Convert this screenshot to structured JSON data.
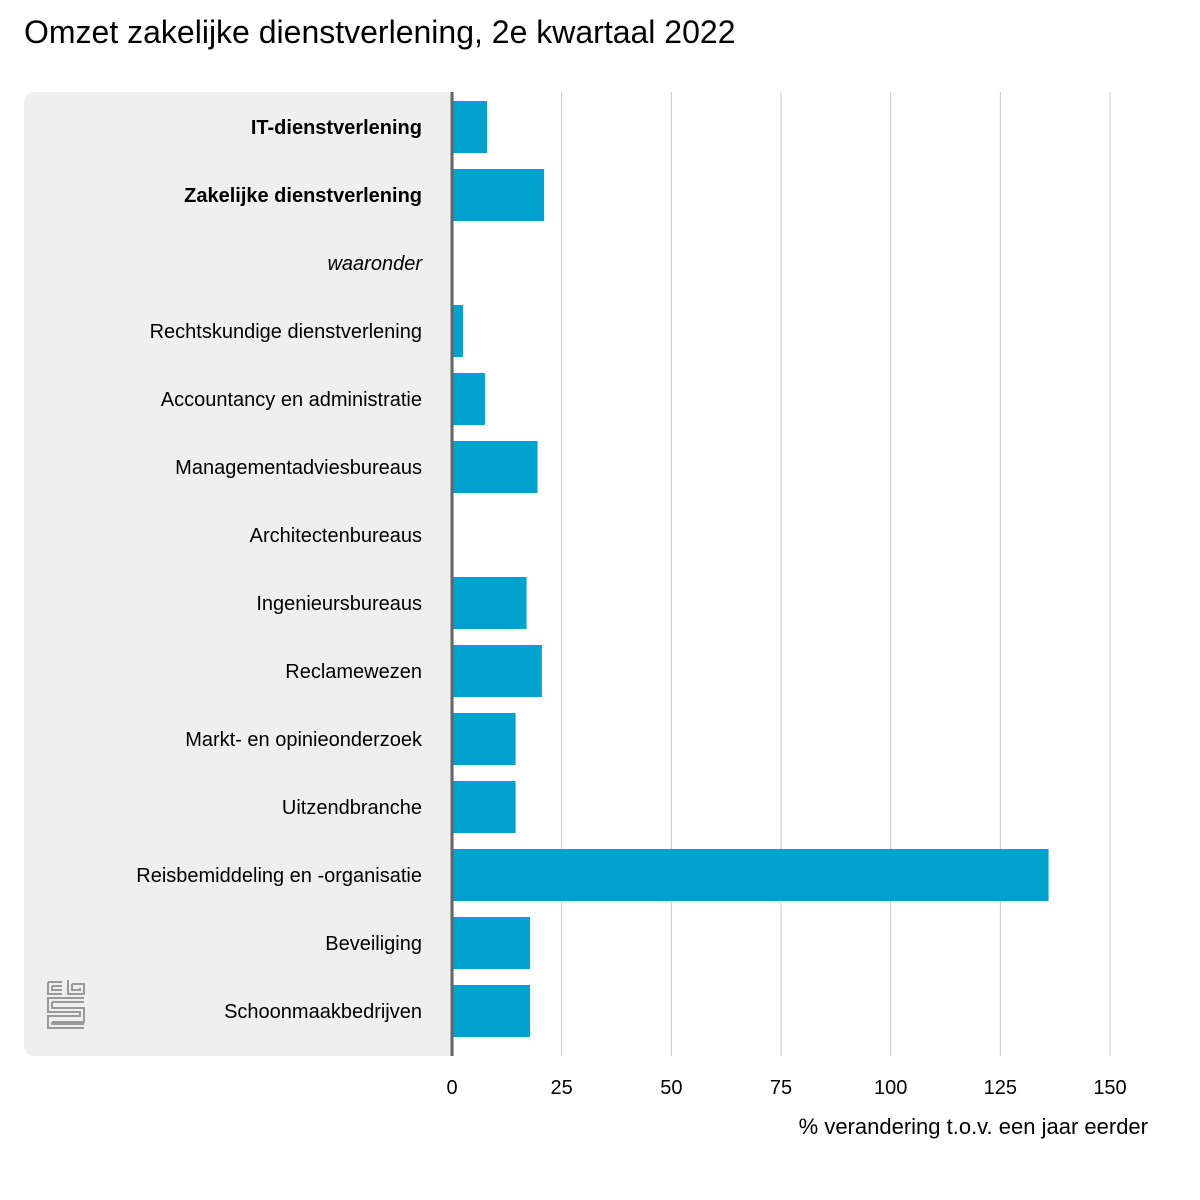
{
  "chart_data": {
    "type": "bar",
    "orientation": "horizontal",
    "title": "Omzet zakelijke dienstverlening, 2e kwartaal 2022",
    "xlabel": "% verandering t.o.v. een jaar eerder",
    "ylabel": "",
    "xlim": [
      0,
      150
    ],
    "xticks": [
      "0",
      "25",
      "50",
      "75",
      "100",
      "125",
      "150"
    ],
    "grid": "vertical",
    "bar_color": "#00a1cd",
    "categories": [
      {
        "label": "IT-dienstverlening",
        "style": "bold"
      },
      {
        "label": "Zakelijke dienstverlening",
        "style": "bold"
      },
      {
        "label": "waaronder",
        "style": "italic"
      },
      {
        "label": "Rechtskundige dienstverlening",
        "style": "normal"
      },
      {
        "label": "Accountancy en administratie",
        "style": "normal"
      },
      {
        "label": "Managementadviesbureaus",
        "style": "normal"
      },
      {
        "label": "Architectenbureaus",
        "style": "normal"
      },
      {
        "label": "Ingenieursbureaus",
        "style": "normal"
      },
      {
        "label": "Reclamewezen",
        "style": "normal"
      },
      {
        "label": "Markt- en opinieonderzoek",
        "style": "normal"
      },
      {
        "label": "Uitzendbranche",
        "style": "normal"
      },
      {
        "label": "Reisbemiddeling en -organisatie",
        "style": "normal"
      },
      {
        "label": "Beveiliging",
        "style": "normal"
      },
      {
        "label": "Schoonmaakbedrijven",
        "style": "normal"
      }
    ],
    "values": [
      8,
      21,
      null,
      2.5,
      7.5,
      19.5,
      0,
      17,
      20.5,
      14.5,
      14.5,
      136,
      17.8,
      17.8
    ]
  },
  "logo": {
    "name": "cbs-logo-icon",
    "text": "cbs"
  }
}
